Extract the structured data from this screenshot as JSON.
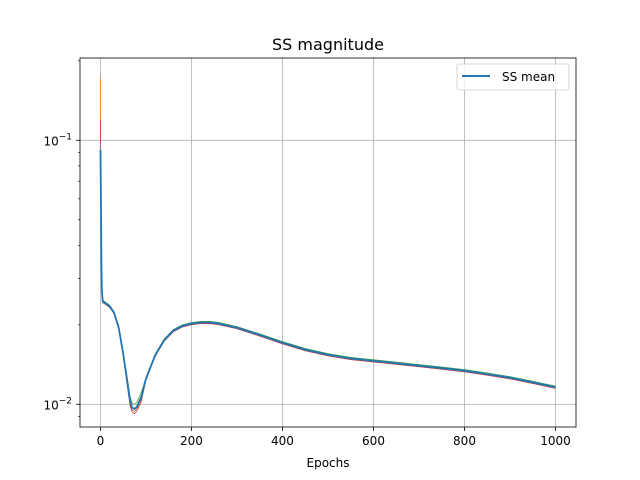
{
  "chart_data": {
    "type": "line",
    "title": "SS magnitude",
    "xlabel": "Epochs",
    "ylabel": "",
    "xscale": "linear",
    "yscale": "log",
    "xlim": [
      -45,
      1045
    ],
    "ylim": [
      0.0082,
      0.205
    ],
    "grid": true,
    "legend_position": "top-right",
    "x_ticks": [
      {
        "value": 0,
        "label": "0"
      },
      {
        "value": 200,
        "label": "200"
      },
      {
        "value": 400,
        "label": "400"
      },
      {
        "value": 600,
        "label": "600"
      },
      {
        "value": 800,
        "label": "800"
      },
      {
        "value": 1000,
        "label": "1000"
      }
    ],
    "y_ticks": [
      {
        "value": 0.01,
        "label": "10",
        "exp": "−2"
      },
      {
        "value": 0.1,
        "label": "10",
        "exp": "−1"
      }
    ],
    "mean_series": {
      "name": "SS mean",
      "color": "#1f77b4",
      "points": [
        [
          0,
          0.092
        ],
        [
          1,
          0.06
        ],
        [
          2,
          0.035
        ],
        [
          3,
          0.027
        ],
        [
          5,
          0.0245
        ],
        [
          10,
          0.0242
        ],
        [
          20,
          0.0235
        ],
        [
          30,
          0.0222
        ],
        [
          40,
          0.0195
        ],
        [
          50,
          0.0155
        ],
        [
          60,
          0.0118
        ],
        [
          65,
          0.0103
        ],
        [
          70,
          0.0097
        ],
        [
          75,
          0.0096
        ],
        [
          80,
          0.0098
        ],
        [
          90,
          0.0107
        ],
        [
          100,
          0.0125
        ],
        [
          120,
          0.0153
        ],
        [
          140,
          0.0175
        ],
        [
          160,
          0.019
        ],
        [
          180,
          0.0198
        ],
        [
          200,
          0.0202
        ],
        [
          220,
          0.0204
        ],
        [
          240,
          0.0204
        ],
        [
          260,
          0.0202
        ],
        [
          300,
          0.0195
        ],
        [
          350,
          0.0183
        ],
        [
          400,
          0.0171
        ],
        [
          450,
          0.0161
        ],
        [
          500,
          0.0154
        ],
        [
          550,
          0.0149
        ],
        [
          600,
          0.0146
        ],
        [
          650,
          0.0143
        ],
        [
          700,
          0.014
        ],
        [
          750,
          0.0137
        ],
        [
          800,
          0.0134
        ],
        [
          850,
          0.013
        ],
        [
          900,
          0.0126
        ],
        [
          950,
          0.0121
        ],
        [
          1000,
          0.0116
        ]
      ]
    },
    "runs": [
      {
        "color": "#ff7f0e",
        "factor": 1.0,
        "peak": 0.175,
        "dip": 1.0
      },
      {
        "color": "#2ca02c",
        "factor": 1.01,
        "peak": 0.09,
        "dip": 1.04
      },
      {
        "color": "#d62728",
        "factor": 0.99,
        "peak": 0.12,
        "dip": 0.96
      },
      {
        "color": "#9467bd",
        "factor": 1.005,
        "peak": 0.1,
        "dip": 1.0
      },
      {
        "color": "#8c564b",
        "factor": 0.995,
        "peak": 0.07,
        "dip": 0.98
      }
    ]
  }
}
